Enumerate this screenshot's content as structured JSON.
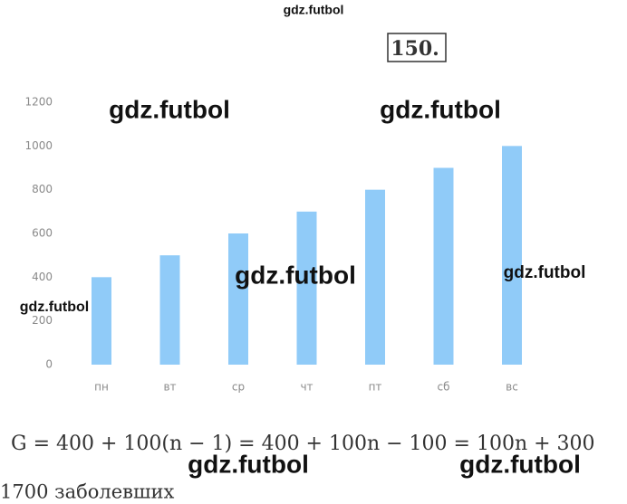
{
  "problem_number": "150.",
  "watermarks": [
    "gdz.futbol",
    "gdz.futbol",
    "gdz.futbol",
    "gdz.futbol",
    "gdz.futbol",
    "gdz.futbol",
    "gdz.futbol",
    "gdz.futbol"
  ],
  "formula": "G = 400 + 100(n − 1) = 400 + 100n − 100 = 100n + 300",
  "answer": "1700 заболевших",
  "chart_data": {
    "type": "bar",
    "categories": [
      "пн",
      "вт",
      "ср",
      "чт",
      "пт",
      "сб",
      "вс"
    ],
    "values": [
      400,
      500,
      600,
      700,
      800,
      900,
      1000
    ],
    "color": "#90cbf8",
    "ylim": [
      0,
      1200
    ],
    "yticks": [
      0,
      200,
      400,
      600,
      800,
      1000,
      1200
    ],
    "grid": false
  }
}
